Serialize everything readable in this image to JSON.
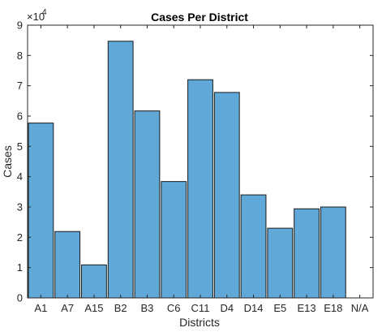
{
  "chart_data": {
    "type": "bar",
    "title": "Cases Per District",
    "xlabel": "Districts",
    "ylabel": "Cases",
    "y_exponent_label": {
      "base": "×10",
      "power": "4"
    },
    "categories": [
      "A1",
      "A7",
      "A15",
      "B2",
      "B3",
      "C6",
      "C11",
      "D4",
      "D14",
      "E5",
      "E13",
      "E18",
      "N/A"
    ],
    "values": [
      57700,
      21900,
      10900,
      84700,
      61700,
      38400,
      72000,
      67800,
      34000,
      23000,
      29400,
      30000,
      0
    ],
    "ylim": [
      0,
      90000
    ],
    "yticks": [
      0,
      10000,
      20000,
      30000,
      40000,
      50000,
      60000,
      70000,
      80000,
      90000
    ],
    "ytick_labels": [
      "0",
      "1",
      "2",
      "3",
      "4",
      "5",
      "6",
      "7",
      "8",
      "9"
    ],
    "grid": false,
    "bar_color": "#5fa8d8",
    "edge_color": "#1a1a1a"
  }
}
